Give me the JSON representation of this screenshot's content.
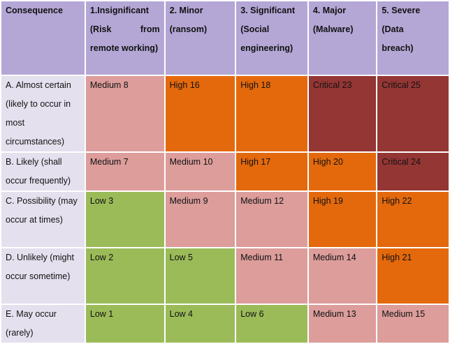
{
  "header": [
    "Consequence",
    "1.Insignificant (Risk from remote working)",
    "2. Minor (ransom)",
    "3. Significant (Social engineering)",
    "4. Major (Malware)",
    "5. Severe (Data breach)"
  ],
  "rows": [
    {
      "label": "A. Almost certain (likely to occur in most circumstances)",
      "cells": [
        {
          "text": "Medium 8",
          "level": "medium"
        },
        {
          "text": "High 16",
          "level": "high"
        },
        {
          "text": "High 18",
          "level": "high"
        },
        {
          "text": "Critical 23",
          "level": "critical"
        },
        {
          "text": "Critical 25",
          "level": "critical"
        }
      ]
    },
    {
      "label": "B. Likely (shall occur frequently)",
      "cells": [
        {
          "text": "Medium 7",
          "level": "medium"
        },
        {
          "text": "Medium 10",
          "level": "medium"
        },
        {
          "text": "High 17",
          "level": "high"
        },
        {
          "text": "High 20",
          "level": "high"
        },
        {
          "text": "Critical 24",
          "level": "critical"
        }
      ]
    },
    {
      "label": "C. Possibility (may occur at times)",
      "cells": [
        {
          "text": "Low 3",
          "level": "low"
        },
        {
          "text": "Medium 9",
          "level": "medium"
        },
        {
          "text": "Medium 12",
          "level": "medium"
        },
        {
          "text": "High 19",
          "level": "high"
        },
        {
          "text": "High 22",
          "level": "high"
        }
      ]
    },
    {
      "label": "D. Unlikely (might occur sometime)",
      "cells": [
        {
          "text": "Low 2",
          "level": "low"
        },
        {
          "text": "Low 5",
          "level": "low"
        },
        {
          "text": "Medium 11",
          "level": "medium"
        },
        {
          "text": "Medium 14",
          "level": "medium"
        },
        {
          "text": "High 21",
          "level": "high"
        }
      ]
    },
    {
      "label": "E. May occur (rarely)",
      "cells": [
        {
          "text": "Low 1",
          "level": "low"
        },
        {
          "text": "Low 4",
          "level": "low"
        },
        {
          "text": "Low 6",
          "level": "low"
        },
        {
          "text": "Medium 13",
          "level": "medium"
        },
        {
          "text": "Medium 15",
          "level": "medium"
        }
      ]
    }
  ],
  "colors": {
    "header": "#b4a7d6",
    "row_header": "#e4e0ee",
    "low": "#9bbb59",
    "medium": "#dc9d9b",
    "high": "#e4690c",
    "critical": "#943634"
  }
}
